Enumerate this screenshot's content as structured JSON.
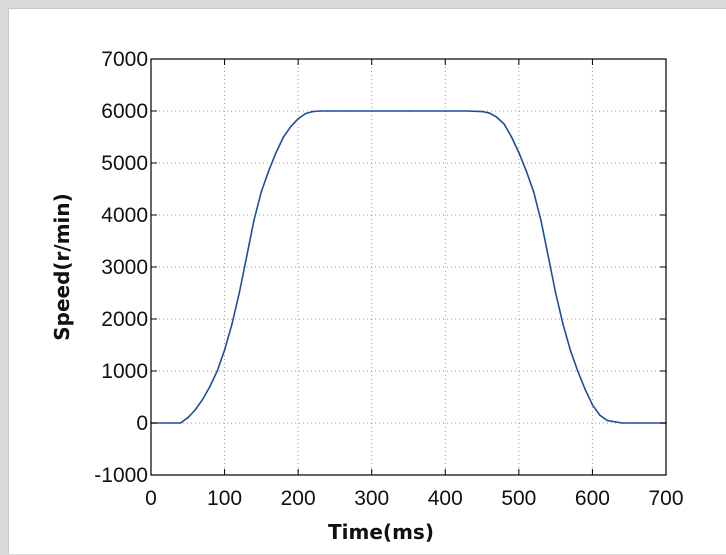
{
  "chart_data": {
    "type": "line",
    "title": "",
    "xlabel": "Time(ms)",
    "ylabel": "Speed(r/min)",
    "xlim": [
      0,
      700
    ],
    "ylim": [
      -1000,
      7000
    ],
    "x_ticks": [
      "0",
      "100",
      "200",
      "300",
      "400",
      "500",
      "600",
      "700"
    ],
    "y_ticks": [
      "-1000",
      "0",
      "1000",
      "2000",
      "3000",
      "4000",
      "5000",
      "6000",
      "7000"
    ],
    "grid": true,
    "legend": "none",
    "series": [
      {
        "color": "#1f4e9c",
        "x": [
          0,
          30,
          40,
          50,
          60,
          70,
          80,
          90,
          100,
          110,
          120,
          130,
          140,
          150,
          160,
          170,
          180,
          190,
          200,
          210,
          220,
          230,
          240,
          250,
          270,
          300,
          350,
          400,
          430,
          450,
          460,
          470,
          480,
          490,
          500,
          510,
          520,
          530,
          540,
          550,
          560,
          570,
          580,
          590,
          600,
          610,
          620,
          640,
          660,
          700
        ],
        "y": [
          0,
          0,
          0,
          100,
          250,
          450,
          700,
          1000,
          1400,
          1900,
          2500,
          3200,
          3900,
          4450,
          4850,
          5200,
          5500,
          5700,
          5850,
          5950,
          5990,
          6000,
          6000,
          6000,
          6000,
          6000,
          6000,
          6000,
          6000,
          5990,
          5960,
          5880,
          5750,
          5500,
          5200,
          4850,
          4450,
          3900,
          3200,
          2500,
          1900,
          1400,
          1000,
          650,
          350,
          150,
          50,
          0,
          0,
          0
        ]
      }
    ]
  }
}
